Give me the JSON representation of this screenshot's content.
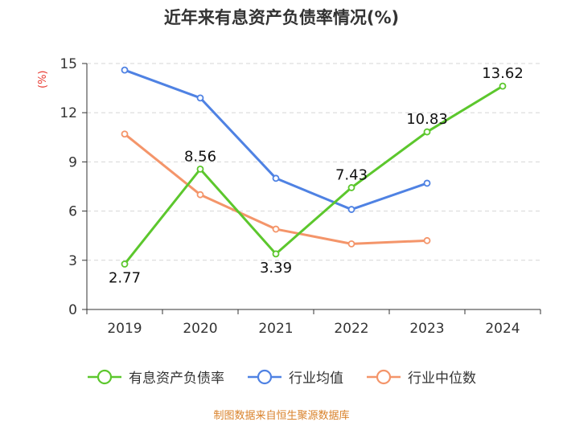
{
  "chart_data": {
    "type": "line",
    "title": "近年来有息资产负债率情况(%)",
    "ylabel": "(%)",
    "xlabel": "",
    "categories": [
      "2019",
      "2020",
      "2021",
      "2022",
      "2023",
      "2024"
    ],
    "ylim": [
      0,
      15
    ],
    "yticks": [
      0,
      3,
      6,
      9,
      12,
      15
    ],
    "grid": true,
    "legend_position": "bottom",
    "series": [
      {
        "name": "有息资产负债率",
        "color": "#5cc72d",
        "values": [
          2.77,
          8.56,
          3.39,
          7.43,
          10.83,
          13.62
        ],
        "labels": [
          "2.77",
          "8.56",
          "3.39",
          "7.43",
          "10.83",
          "13.62"
        ]
      },
      {
        "name": "行业均值",
        "color": "#4f82e3",
        "values": [
          14.6,
          12.9,
          8.0,
          6.1,
          7.7,
          null
        ]
      },
      {
        "name": "行业中位数",
        "color": "#f4956a",
        "values": [
          10.7,
          7.0,
          4.9,
          4.0,
          4.2,
          null
        ]
      }
    ]
  },
  "footer": {
    "source": "制图数据来自恒生聚源数据库"
  }
}
